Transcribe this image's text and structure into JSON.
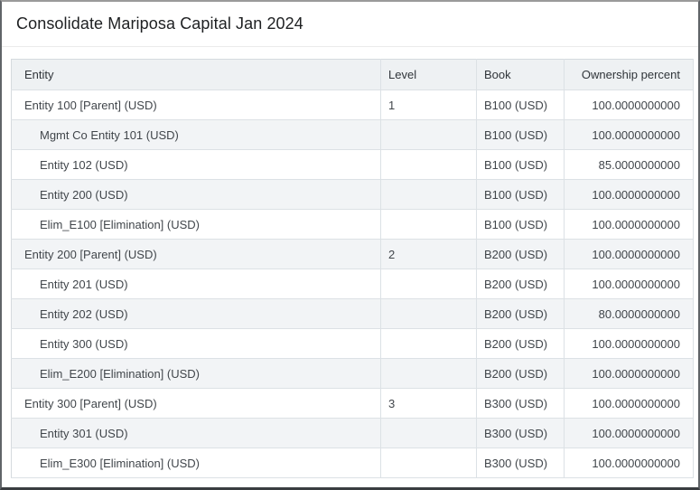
{
  "title": "Consolidate Mariposa Capital Jan 2024",
  "table": {
    "columns": [
      "Entity",
      "Level",
      "Book",
      "Ownership percent"
    ],
    "rows": [
      {
        "entity": "Entity 100 [Parent] (USD)",
        "indent": 1,
        "level": "1",
        "book": "B100 (USD)",
        "ownership": "100.0000000000"
      },
      {
        "entity": "Mgmt Co Entity 101 (USD)",
        "indent": 2,
        "level": "",
        "book": "B100 (USD)",
        "ownership": "100.0000000000"
      },
      {
        "entity": "Entity 102 (USD)",
        "indent": 2,
        "level": "",
        "book": "B100 (USD)",
        "ownership": "85.0000000000"
      },
      {
        "entity": "Entity 200 (USD)",
        "indent": 2,
        "level": "",
        "book": "B100 (USD)",
        "ownership": "100.0000000000"
      },
      {
        "entity": "Elim_E100 [Elimination] (USD)",
        "indent": 2,
        "level": "",
        "book": "B100 (USD)",
        "ownership": "100.0000000000"
      },
      {
        "entity": "Entity 200 [Parent] (USD)",
        "indent": 1,
        "level": "2",
        "book": "B200 (USD)",
        "ownership": "100.0000000000"
      },
      {
        "entity": "Entity 201 (USD)",
        "indent": 2,
        "level": "",
        "book": "B200 (USD)",
        "ownership": "100.0000000000"
      },
      {
        "entity": "Entity 202 (USD)",
        "indent": 2,
        "level": "",
        "book": "B200 (USD)",
        "ownership": "80.0000000000"
      },
      {
        "entity": "Entity 300 (USD)",
        "indent": 2,
        "level": "",
        "book": "B200 (USD)",
        "ownership": "100.0000000000"
      },
      {
        "entity": "Elim_E200 [Elimination] (USD)",
        "indent": 2,
        "level": "",
        "book": "B200 (USD)",
        "ownership": "100.0000000000"
      },
      {
        "entity": "Entity 300 [Parent] (USD)",
        "indent": 1,
        "level": "3",
        "book": "B300 (USD)",
        "ownership": "100.0000000000"
      },
      {
        "entity": "Entity 301 (USD)",
        "indent": 2,
        "level": "",
        "book": "B300 (USD)",
        "ownership": "100.0000000000"
      },
      {
        "entity": "Elim_E300 [Elimination] (USD)",
        "indent": 2,
        "level": "",
        "book": "B300 (USD)",
        "ownership": "100.0000000000"
      }
    ]
  },
  "colors": {
    "header_bg": "#eef1f3",
    "stripe_bg": "#f2f4f6",
    "grid_border": "#dce1e5"
  }
}
